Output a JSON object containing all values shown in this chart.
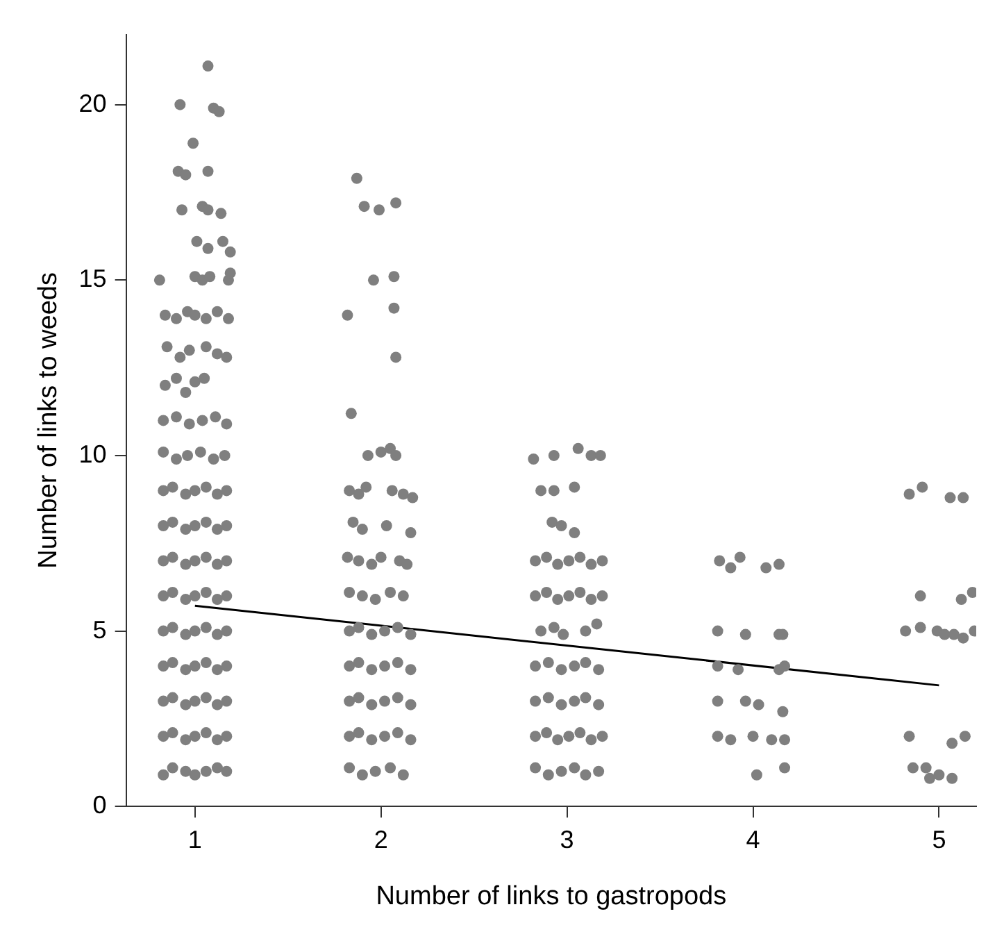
{
  "chart_data": {
    "type": "scatter",
    "xlabel": "Number of links to gastropods",
    "ylabel": "Number of links to weeds",
    "xlim": [
      0.63,
      5.2
    ],
    "ylim": [
      0,
      22
    ],
    "xticks": [
      1,
      2,
      3,
      4,
      5
    ],
    "yticks": [
      0,
      5,
      10,
      15,
      20
    ],
    "grid": false,
    "series": [
      {
        "marker": "circle",
        "color": "#7f7f7f",
        "x": [
          0.83,
          0.88,
          0.95,
          1.0,
          1.06,
          1.12,
          1.17,
          0.83,
          0.88,
          0.95,
          1.0,
          1.06,
          1.12,
          1.17,
          0.83,
          0.88,
          0.95,
          1.0,
          1.06,
          1.12,
          1.17,
          0.83,
          0.88,
          0.95,
          1.0,
          1.06,
          1.12,
          1.17,
          0.83,
          0.88,
          0.95,
          1.0,
          1.06,
          1.12,
          1.17,
          0.83,
          0.88,
          0.95,
          1.0,
          1.06,
          1.12,
          1.17,
          0.83,
          0.88,
          0.95,
          1.0,
          1.06,
          1.12,
          1.17,
          0.83,
          0.88,
          0.95,
          1.0,
          1.06,
          1.12,
          1.17,
          0.83,
          0.88,
          0.95,
          1.0,
          1.06,
          1.12,
          1.17,
          0.83,
          0.9,
          0.96,
          1.03,
          1.1,
          1.16,
          0.83,
          0.9,
          0.97,
          1.04,
          1.11,
          1.17,
          0.84,
          0.9,
          0.95,
          1.0,
          1.05,
          0.85,
          0.92,
          0.97,
          1.06,
          1.12,
          1.17,
          0.84,
          0.9,
          0.96,
          1.0,
          1.06,
          1.12,
          1.18,
          0.81,
          1.0,
          1.04,
          1.08,
          1.18,
          1.19,
          1.01,
          1.07,
          1.15,
          1.19,
          0.93,
          1.04,
          1.07,
          1.14,
          0.91,
          0.95,
          1.07,
          0.99,
          0.92,
          1.1,
          1.13,
          1.07,
          1.87,
          1.91,
          1.99,
          2.08,
          1.96,
          2.07,
          1.82,
          2.07,
          2.08,
          1.84,
          1.93,
          2.0,
          2.05,
          2.08,
          1.83,
          1.88,
          1.92,
          2.06,
          2.12,
          2.17,
          1.85,
          1.9,
          2.03,
          2.16,
          1.82,
          1.88,
          1.95,
          2.0,
          2.1,
          2.14,
          1.83,
          1.9,
          1.97,
          2.05,
          2.12,
          1.83,
          1.88,
          1.95,
          2.02,
          2.09,
          2.16,
          1.83,
          1.88,
          1.95,
          2.02,
          2.09,
          2.16,
          1.83,
          1.88,
          1.95,
          2.02,
          2.09,
          2.16,
          1.83,
          1.88,
          1.95,
          2.02,
          2.09,
          2.16,
          1.83,
          1.9,
          1.97,
          2.05,
          2.12,
          2.82,
          2.93,
          3.06,
          3.13,
          3.18,
          2.86,
          2.93,
          3.04,
          2.92,
          2.97,
          3.04,
          2.83,
          2.89,
          2.95,
          3.01,
          3.07,
          3.13,
          3.19,
          2.83,
          2.89,
          2.95,
          3.01,
          3.07,
          3.13,
          3.19,
          2.86,
          2.93,
          2.98,
          3.1,
          3.16,
          2.83,
          2.9,
          2.97,
          3.04,
          3.1,
          3.17,
          2.83,
          2.9,
          2.97,
          3.04,
          3.1,
          3.17,
          2.83,
          2.89,
          2.95,
          3.01,
          3.07,
          3.13,
          3.19,
          2.83,
          2.9,
          2.97,
          3.04,
          3.1,
          3.17,
          3.82,
          3.88,
          3.93,
          4.07,
          4.14,
          3.81,
          3.96,
          4.14,
          4.16,
          3.81,
          3.92,
          4.14,
          4.17,
          3.81,
          3.96,
          4.03,
          4.16,
          3.81,
          3.88,
          4.0,
          4.1,
          4.17,
          4.02,
          4.17,
          4.84,
          4.91,
          5.06,
          5.13,
          4.9,
          5.12,
          5.18,
          4.82,
          4.9,
          4.99,
          5.03,
          5.08,
          5.13,
          5.19,
          4.84,
          5.07,
          5.14,
          4.86,
          4.93,
          4.95,
          5.0,
          5.07
        ],
        "values": [
          0.9,
          1.1,
          1.0,
          0.9,
          1.0,
          1.1,
          1.0,
          2.0,
          2.1,
          1.9,
          2.0,
          2.1,
          1.9,
          2.0,
          3.0,
          3.1,
          2.9,
          3.0,
          3.1,
          2.9,
          3.0,
          4.0,
          4.1,
          3.9,
          4.0,
          4.1,
          3.9,
          4.0,
          5.0,
          5.1,
          4.9,
          5.0,
          5.1,
          4.9,
          5.0,
          6.0,
          6.1,
          5.9,
          6.0,
          6.1,
          5.9,
          6.0,
          7.0,
          7.1,
          6.9,
          7.0,
          7.1,
          6.9,
          7.0,
          8.0,
          8.1,
          7.9,
          8.0,
          8.1,
          7.9,
          8.0,
          9.0,
          9.1,
          8.9,
          9.0,
          9.1,
          8.9,
          9.0,
          10.1,
          9.9,
          10.0,
          10.1,
          9.9,
          10.0,
          11.0,
          11.1,
          10.9,
          11.0,
          11.1,
          10.9,
          12.0,
          12.2,
          11.8,
          12.1,
          12.2,
          13.1,
          12.8,
          13.0,
          13.1,
          12.9,
          12.8,
          14.0,
          13.9,
          14.1,
          14.0,
          13.9,
          14.1,
          13.9,
          15.0,
          15.1,
          15.0,
          15.1,
          15.0,
          15.2,
          16.1,
          15.9,
          16.1,
          15.8,
          17.0,
          17.1,
          17.0,
          16.9,
          18.1,
          18.0,
          18.1,
          18.9,
          20.0,
          19.9,
          19.8,
          21.1,
          17.9,
          17.1,
          17.0,
          17.2,
          15.0,
          15.1,
          14.0,
          14.2,
          12.8,
          11.2,
          10.0,
          10.1,
          10.2,
          10.0,
          9.0,
          8.9,
          9.1,
          9.0,
          8.9,
          8.8,
          8.1,
          7.9,
          8.0,
          7.8,
          7.1,
          7.0,
          6.9,
          7.1,
          7.0,
          6.9,
          6.1,
          6.0,
          5.9,
          6.1,
          6.0,
          5.0,
          5.1,
          4.9,
          5.0,
          5.1,
          4.9,
          4.0,
          4.1,
          3.9,
          4.0,
          4.1,
          3.9,
          3.0,
          3.1,
          2.9,
          3.0,
          3.1,
          2.9,
          2.0,
          2.1,
          1.9,
          2.0,
          2.1,
          1.9,
          1.1,
          0.9,
          1.0,
          1.1,
          0.9,
          9.9,
          10.0,
          10.2,
          10.0,
          10.0,
          9.0,
          9.0,
          9.1,
          8.1,
          8.0,
          7.8,
          7.0,
          7.1,
          6.9,
          7.0,
          7.1,
          6.9,
          7.0,
          6.0,
          6.1,
          5.9,
          6.0,
          6.1,
          5.9,
          6.0,
          5.0,
          5.1,
          4.9,
          5.0,
          5.2,
          4.0,
          4.1,
          3.9,
          4.0,
          4.1,
          3.9,
          3.0,
          3.1,
          2.9,
          3.0,
          3.1,
          2.9,
          2.0,
          2.1,
          1.9,
          2.0,
          2.1,
          1.9,
          2.0,
          1.1,
          0.9,
          1.0,
          1.1,
          0.9,
          1.0,
          7.0,
          6.8,
          7.1,
          6.8,
          6.9,
          5.0,
          4.9,
          4.9,
          4.9,
          4.0,
          3.9,
          3.9,
          4.0,
          3.0,
          3.0,
          2.9,
          2.7,
          2.0,
          1.9,
          2.0,
          1.9,
          1.9,
          0.9,
          1.1,
          8.9,
          9.1,
          8.8,
          8.8,
          6.0,
          5.9,
          6.1,
          5.0,
          5.1,
          5.0,
          4.9,
          4.9,
          4.8,
          5.0,
          2.0,
          1.8,
          2.0,
          1.1,
          1.1,
          0.8,
          0.9,
          0.8
        ]
      },
      {
        "type": "line",
        "marker": "none",
        "line_style": "solid",
        "color": "#000000",
        "x": [
          1,
          5
        ],
        "values": [
          5.72,
          3.45
        ]
      }
    ]
  }
}
